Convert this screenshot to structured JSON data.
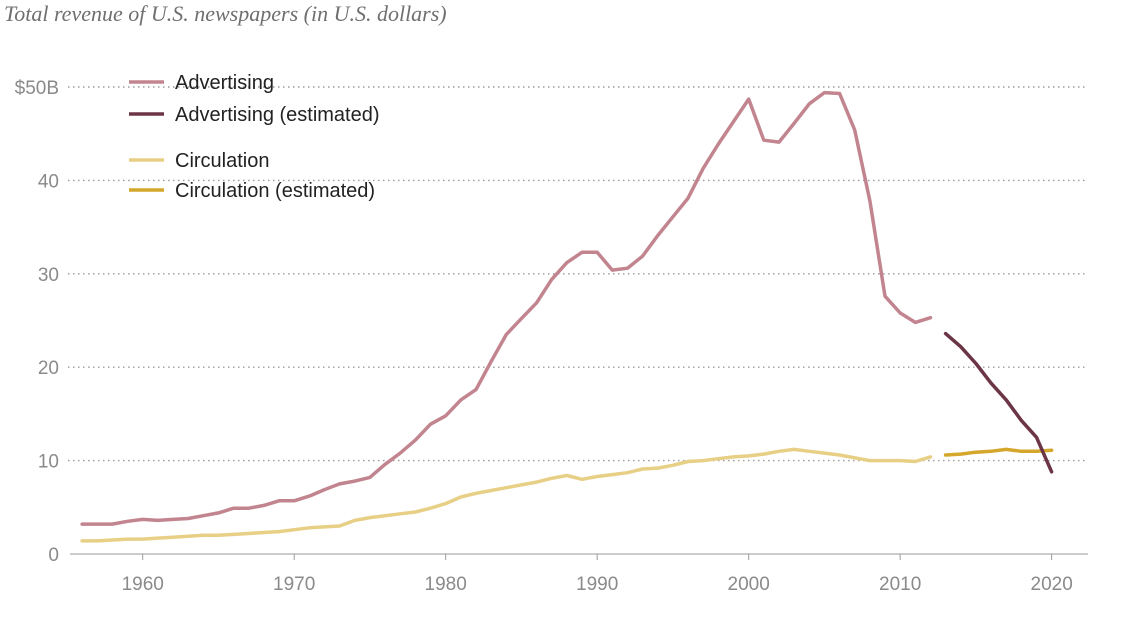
{
  "chart_data": {
    "type": "line",
    "title": "Total revenue of U.S. newspapers (in U.S. dollars)",
    "x_ticks": [
      1960,
      1970,
      1980,
      1990,
      2000,
      2010,
      2020
    ],
    "xlim": [
      1955.2,
      2022.4
    ],
    "ylim": [
      0,
      50
    ],
    "y_ticks": [
      {
        "value": 0,
        "label": "0"
      },
      {
        "value": 10,
        "label": "10"
      },
      {
        "value": 20,
        "label": "20"
      },
      {
        "value": 30,
        "label": "30"
      },
      {
        "value": 40,
        "label": "40"
      },
      {
        "value": 50,
        "label": "$50B"
      }
    ],
    "grid": true,
    "legend_position": "top-left",
    "series": [
      {
        "name": "Advertising",
        "color": "#c2858f",
        "x": [
          1956,
          1957,
          1958,
          1959,
          1960,
          1961,
          1962,
          1963,
          1964,
          1965,
          1966,
          1967,
          1968,
          1969,
          1970,
          1971,
          1972,
          1973,
          1974,
          1975,
          1976,
          1977,
          1978,
          1979,
          1980,
          1981,
          1982,
          1983,
          1984,
          1985,
          1986,
          1987,
          1988,
          1989,
          1990,
          1991,
          1992,
          1993,
          1994,
          1995,
          1996,
          1997,
          1998,
          1999,
          2000,
          2001,
          2002,
          2003,
          2004,
          2005,
          2006,
          2007,
          2008,
          2009,
          2010,
          2011,
          2012
        ],
        "values": [
          3.2,
          3.2,
          3.2,
          3.5,
          3.7,
          3.6,
          3.7,
          3.8,
          4.1,
          4.4,
          4.9,
          4.9,
          5.2,
          5.7,
          5.7,
          6.2,
          6.9,
          7.5,
          7.8,
          8.2,
          9.6,
          10.8,
          12.2,
          13.9,
          14.8,
          16.5,
          17.6,
          20.6,
          23.5,
          25.2,
          26.9,
          29.4,
          31.2,
          32.3,
          32.3,
          30.4,
          30.6,
          31.9,
          34.1,
          36.1,
          38.1,
          41.3,
          43.9,
          46.3,
          48.7,
          44.3,
          44.1,
          46.1,
          48.2,
          49.4,
          49.3,
          45.4,
          37.8,
          27.6,
          25.8,
          24.8,
          25.3
        ]
      },
      {
        "name": "Advertising (estimated)",
        "color": "#6b3545",
        "x": [
          2013,
          2014,
          2015,
          2016,
          2017,
          2018,
          2019,
          2020
        ],
        "values": [
          23.6,
          22.2,
          20.4,
          18.3,
          16.5,
          14.3,
          12.5,
          8.8
        ]
      },
      {
        "name": "Circulation",
        "color": "#e8cf86",
        "x": [
          1956,
          1957,
          1958,
          1959,
          1960,
          1961,
          1962,
          1963,
          1964,
          1965,
          1966,
          1967,
          1968,
          1969,
          1970,
          1971,
          1972,
          1973,
          1974,
          1975,
          1976,
          1977,
          1978,
          1979,
          1980,
          1981,
          1982,
          1983,
          1984,
          1985,
          1986,
          1987,
          1988,
          1989,
          1990,
          1991,
          1992,
          1993,
          1994,
          1995,
          1996,
          1997,
          1998,
          1999,
          2000,
          2001,
          2002,
          2003,
          2004,
          2005,
          2006,
          2007,
          2008,
          2009,
          2010,
          2011,
          2012
        ],
        "values": [
          1.4,
          1.4,
          1.5,
          1.6,
          1.6,
          1.7,
          1.8,
          1.9,
          2.0,
          2.0,
          2.1,
          2.2,
          2.3,
          2.4,
          2.6,
          2.8,
          2.9,
          3.0,
          3.6,
          3.9,
          4.1,
          4.3,
          4.5,
          4.9,
          5.4,
          6.1,
          6.5,
          6.8,
          7.1,
          7.4,
          7.7,
          8.1,
          8.4,
          8.0,
          8.3,
          8.5,
          8.7,
          9.1,
          9.2,
          9.5,
          9.9,
          10.0,
          10.2,
          10.4,
          10.5,
          10.7,
          11.0,
          11.2,
          11.0,
          10.8,
          10.6,
          10.3,
          10.0,
          10.0,
          10.0,
          9.9,
          10.4
        ]
      },
      {
        "name": "Circulation (estimated)",
        "color": "#d4a62c",
        "x": [
          2013,
          2014,
          2015,
          2016,
          2017,
          2018,
          2019,
          2020
        ],
        "values": [
          10.6,
          10.7,
          10.9,
          11.0,
          11.2,
          11.0,
          11.0,
          11.1
        ]
      }
    ]
  }
}
